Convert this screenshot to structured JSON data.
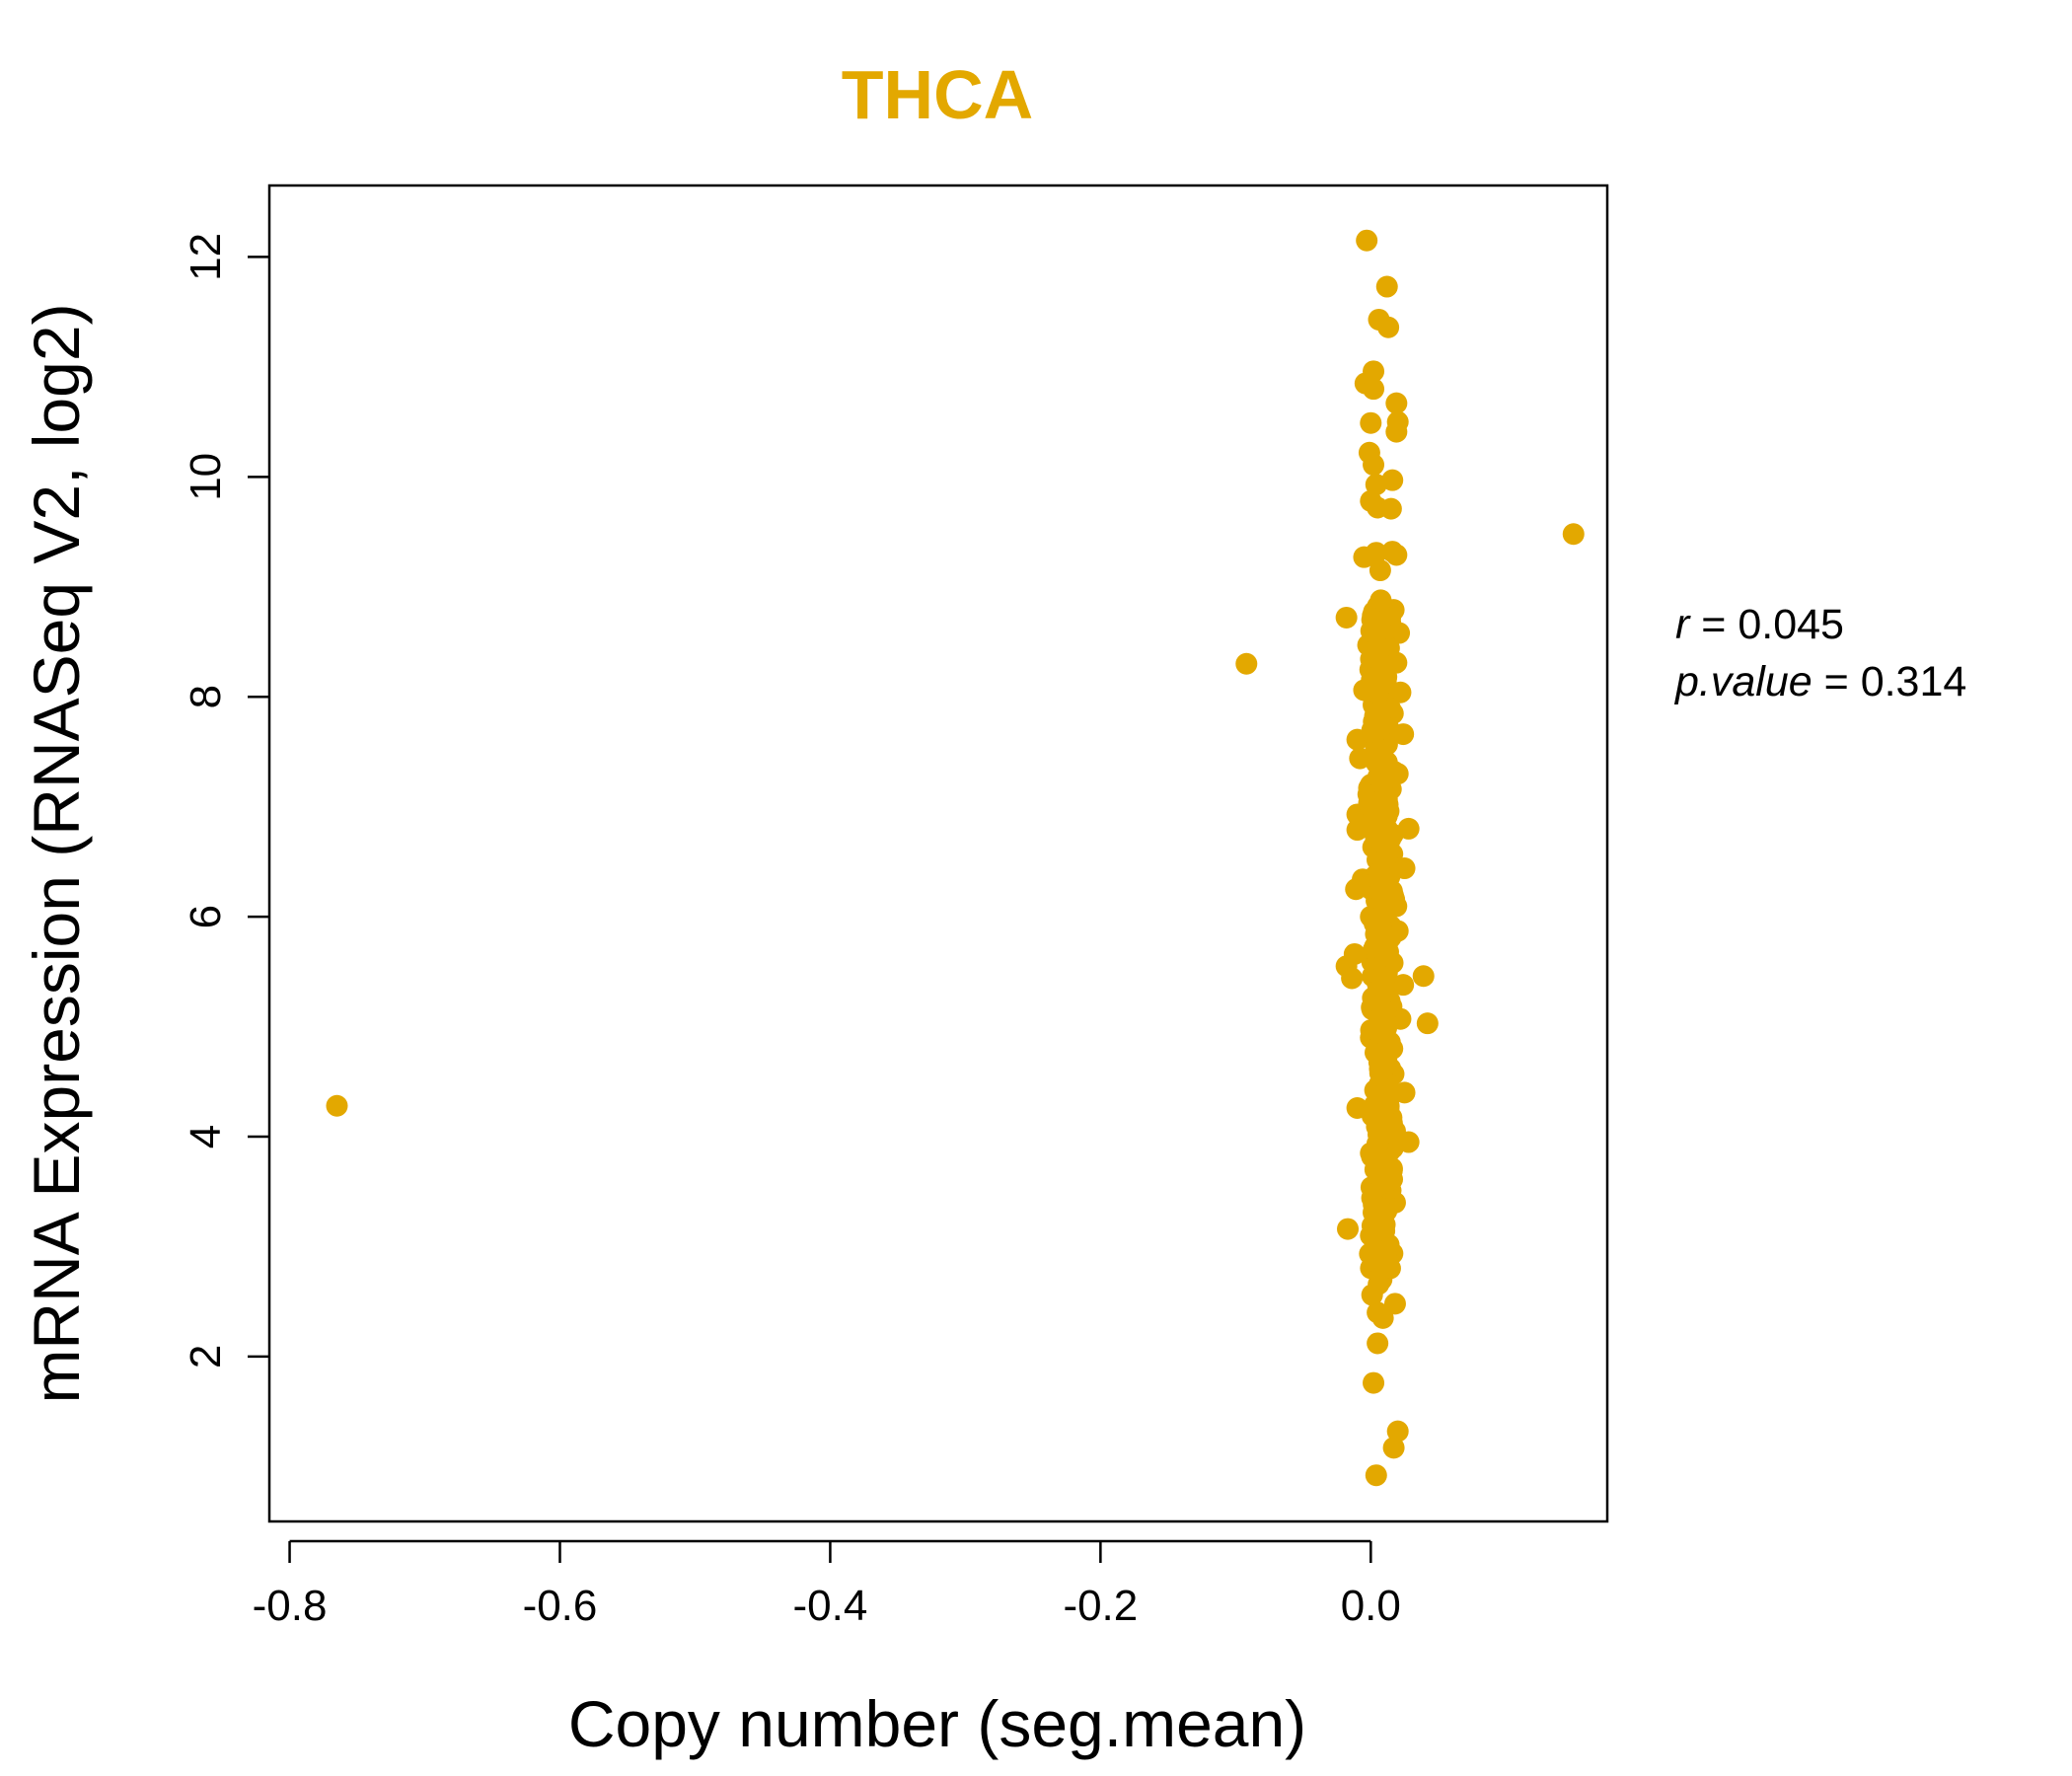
{
  "chart_data": {
    "type": "scatter",
    "title": "THCA",
    "title_color": "#e3a800",
    "point_color": "#e3a800",
    "xlabel": "Copy number (seg.mean)",
    "ylabel": "mRNA Expression (RNASeq V2, log2)",
    "xlim": [
      -0.815,
      0.175
    ],
    "ylim": [
      0.5,
      12.65
    ],
    "x_ticks": [
      -0.8,
      -0.6,
      -0.4,
      -0.2,
      0.0
    ],
    "x_tick_labels": [
      "-0.8",
      "-0.6",
      "-0.4",
      "-0.2",
      "0.0"
    ],
    "y_ticks": [
      2,
      4,
      6,
      8,
      10,
      12
    ],
    "y_tick_labels": [
      "2",
      "4",
      "6",
      "8",
      "10",
      "12"
    ],
    "grid": false,
    "legend": "none",
    "stats": {
      "r_label": "r",
      "r_value": "0.045",
      "p_label": "p.value",
      "p_value": "0.314"
    },
    "points": [
      {
        "x": -0.765,
        "y": 4.28
      },
      {
        "x": -0.092,
        "y": 8.3
      },
      {
        "x": 0.15,
        "y": 9.48
      },
      {
        "x": -0.003,
        "y": 12.15
      },
      {
        "x": 0.012,
        "y": 11.73
      },
      {
        "x": 0.006,
        "y": 11.43
      },
      {
        "x": 0.013,
        "y": 11.36
      },
      {
        "x": 0.002,
        "y": 10.96
      },
      {
        "x": -0.004,
        "y": 10.85
      },
      {
        "x": 0.002,
        "y": 10.8
      },
      {
        "x": 0.019,
        "y": 10.67
      },
      {
        "x": 0.02,
        "y": 10.5
      },
      {
        "x": 0.019,
        "y": 10.41
      },
      {
        "x": 0.0,
        "y": 10.49
      },
      {
        "x": -0.001,
        "y": 10.22
      },
      {
        "x": 0.002,
        "y": 10.11
      },
      {
        "x": 0.016,
        "y": 9.97
      },
      {
        "x": 0.004,
        "y": 9.93
      },
      {
        "x": 0.0,
        "y": 9.78
      },
      {
        "x": 0.015,
        "y": 9.71
      },
      {
        "x": 0.005,
        "y": 9.72
      },
      {
        "x": 0.016,
        "y": 9.32
      },
      {
        "x": 0.019,
        "y": 9.29
      },
      {
        "x": -0.005,
        "y": 9.27
      },
      {
        "x": 0.004,
        "y": 9.31
      },
      {
        "x": 0.007,
        "y": 9.15
      },
      {
        "x": -0.018,
        "y": 8.72
      },
      {
        "x": 0.017,
        "y": 8.79
      },
      {
        "x": 0.001,
        "y": 8.7
      },
      {
        "x": 0.021,
        "y": 8.58
      },
      {
        "x": -0.002,
        "y": 8.47
      },
      {
        "x": 0.019,
        "y": 8.31
      },
      {
        "x": 0.01,
        "y": 8.2
      },
      {
        "x": -0.005,
        "y": 8.06
      },
      {
        "x": 0.022,
        "y": 8.04
      },
      {
        "x": 0.005,
        "y": 7.9
      },
      {
        "x": 0.024,
        "y": 7.66
      },
      {
        "x": -0.01,
        "y": 7.61
      },
      {
        "x": 0.008,
        "y": 7.55
      },
      {
        "x": -0.008,
        "y": 7.44
      },
      {
        "x": 0.02,
        "y": 7.3
      },
      {
        "x": 0.0,
        "y": 7.2
      },
      {
        "x": 0.012,
        "y": 7.07
      },
      {
        "x": -0.01,
        "y": 6.93
      },
      {
        "x": 0.028,
        "y": 6.8
      },
      {
        "x": -0.01,
        "y": 6.79
      },
      {
        "x": 0.016,
        "y": 6.57
      },
      {
        "x": 0.025,
        "y": 6.44
      },
      {
        "x": -0.006,
        "y": 6.34
      },
      {
        "x": -0.011,
        "y": 6.25
      },
      {
        "x": 0.012,
        "y": 6.12
      },
      {
        "x": 0.0,
        "y": 6.0
      },
      {
        "x": 0.02,
        "y": 5.87
      },
      {
        "x": -0.012,
        "y": 5.66
      },
      {
        "x": 0.01,
        "y": 5.6
      },
      {
        "x": -0.018,
        "y": 5.55
      },
      {
        "x": 0.039,
        "y": 5.46
      },
      {
        "x": -0.014,
        "y": 5.44
      },
      {
        "x": 0.024,
        "y": 5.38
      },
      {
        "x": 0.005,
        "y": 5.2
      },
      {
        "x": 0.022,
        "y": 5.07
      },
      {
        "x": 0.042,
        "y": 5.03
      },
      {
        "x": 0.0,
        "y": 4.9
      },
      {
        "x": 0.016,
        "y": 4.8
      },
      {
        "x": 0.01,
        "y": 4.6
      },
      {
        "x": 0.025,
        "y": 4.4
      },
      {
        "x": -0.01,
        "y": 4.26
      },
      {
        "x": 0.005,
        "y": 4.2
      },
      {
        "x": 0.018,
        "y": 4.05
      },
      {
        "x": 0.028,
        "y": 3.95
      },
      {
        "x": 0.0,
        "y": 3.85
      },
      {
        "x": 0.015,
        "y": 3.7
      },
      {
        "x": 0.005,
        "y": 3.55
      },
      {
        "x": 0.018,
        "y": 3.4
      },
      {
        "x": 0.004,
        "y": 3.26
      },
      {
        "x": -0.017,
        "y": 3.16
      },
      {
        "x": 0.0,
        "y": 3.1
      },
      {
        "x": 0.014,
        "y": 2.97
      },
      {
        "x": 0.002,
        "y": 2.85
      },
      {
        "x": 0.008,
        "y": 2.7
      },
      {
        "x": 0.001,
        "y": 2.56
      },
      {
        "x": 0.018,
        "y": 2.48
      },
      {
        "x": 0.005,
        "y": 2.4
      },
      {
        "x": 0.009,
        "y": 2.35
      },
      {
        "x": 0.005,
        "y": 2.12
      },
      {
        "x": 0.002,
        "y": 1.76
      },
      {
        "x": 0.02,
        "y": 1.32
      },
      {
        "x": 0.017,
        "y": 1.17
      },
      {
        "x": 0.004,
        "y": 0.92
      }
    ]
  }
}
